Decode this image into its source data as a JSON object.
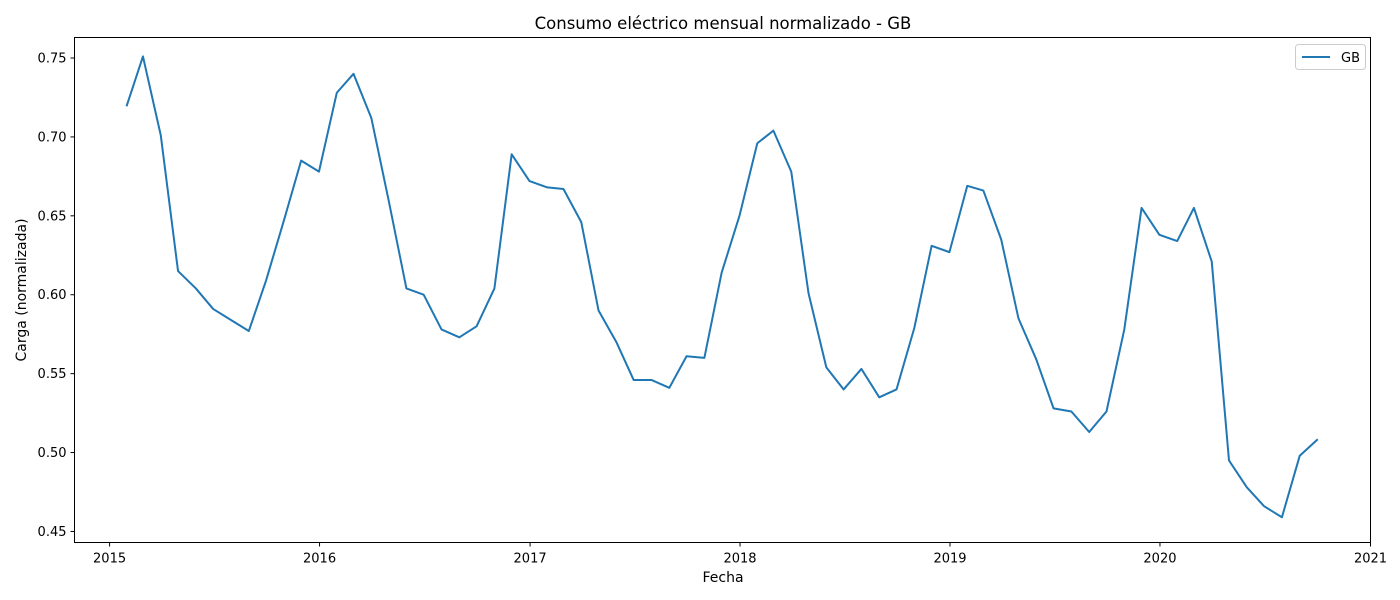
{
  "chart_data": {
    "type": "line",
    "title": "Consumo eléctrico mensual normalizado - GB",
    "xlabel": "Fecha",
    "ylabel": "Carga (normalizada)",
    "x_axis_type": "date",
    "xlim": [
      "2014-11-01",
      "2021-01-01"
    ],
    "ylim": [
      0.443,
      0.763
    ],
    "x_ticks": [
      {
        "date": "2015-01-01",
        "label": "2015"
      },
      {
        "date": "2016-01-01",
        "label": "2016"
      },
      {
        "date": "2017-01-01",
        "label": "2017"
      },
      {
        "date": "2018-01-01",
        "label": "2018"
      },
      {
        "date": "2019-01-01",
        "label": "2019"
      },
      {
        "date": "2020-01-01",
        "label": "2020"
      },
      {
        "date": "2021-01-01",
        "label": "2021"
      }
    ],
    "y_ticks": [
      {
        "value": 0.45,
        "label": "0.45"
      },
      {
        "value": 0.5,
        "label": "0.50"
      },
      {
        "value": 0.55,
        "label": "0.55"
      },
      {
        "value": 0.6,
        "label": "0.60"
      },
      {
        "value": 0.65,
        "label": "0.65"
      },
      {
        "value": 0.7,
        "label": "0.70"
      },
      {
        "value": 0.75,
        "label": "0.75"
      }
    ],
    "grid": false,
    "legend": {
      "position": "top-right"
    },
    "series": [
      {
        "name": "GB",
        "color": "#1f77b4",
        "x": [
          "2015-01-31",
          "2015-02-28",
          "2015-03-31",
          "2015-04-30",
          "2015-05-31",
          "2015-06-30",
          "2015-07-31",
          "2015-08-31",
          "2015-09-30",
          "2015-10-31",
          "2015-11-30",
          "2015-12-31",
          "2016-01-31",
          "2016-02-29",
          "2016-03-31",
          "2016-04-30",
          "2016-05-31",
          "2016-06-30",
          "2016-07-31",
          "2016-08-31",
          "2016-09-30",
          "2016-10-31",
          "2016-11-30",
          "2016-12-31",
          "2017-01-31",
          "2017-02-28",
          "2017-03-31",
          "2017-04-30",
          "2017-05-31",
          "2017-06-30",
          "2017-07-31",
          "2017-08-31",
          "2017-09-30",
          "2017-10-31",
          "2017-11-30",
          "2017-12-31",
          "2018-01-31",
          "2018-02-28",
          "2018-03-31",
          "2018-04-30",
          "2018-05-31",
          "2018-06-30",
          "2018-07-31",
          "2018-08-31",
          "2018-09-30",
          "2018-10-31",
          "2018-11-30",
          "2018-12-31",
          "2019-01-31",
          "2019-02-28",
          "2019-03-31",
          "2019-04-30",
          "2019-05-31",
          "2019-06-30",
          "2019-07-31",
          "2019-08-31",
          "2019-09-30",
          "2019-10-31",
          "2019-11-30",
          "2019-12-31",
          "2020-01-31",
          "2020-02-29",
          "2020-03-31",
          "2020-04-30",
          "2020-05-31",
          "2020-06-30",
          "2020-07-31",
          "2020-08-31",
          "2020-09-30"
        ],
        "values": [
          0.72,
          0.751,
          0.701,
          0.615,
          0.604,
          0.591,
          0.584,
          0.577,
          0.609,
          0.647,
          0.685,
          0.678,
          0.728,
          0.74,
          0.712,
          0.66,
          0.604,
          0.6,
          0.578,
          0.573,
          0.58,
          0.604,
          0.689,
          0.672,
          0.668,
          0.667,
          0.646,
          0.59,
          0.57,
          0.546,
          0.546,
          0.541,
          0.561,
          0.56,
          0.614,
          0.65,
          0.696,
          0.704,
          0.678,
          0.601,
          0.554,
          0.54,
          0.553,
          0.535,
          0.54,
          0.579,
          0.631,
          0.627,
          0.669,
          0.666,
          0.635,
          0.585,
          0.559,
          0.528,
          0.526,
          0.513,
          0.526,
          0.578,
          0.655,
          0.638,
          0.634,
          0.655,
          0.621,
          0.495,
          0.478,
          0.466,
          0.459,
          0.498,
          0.508
        ]
      }
    ]
  }
}
